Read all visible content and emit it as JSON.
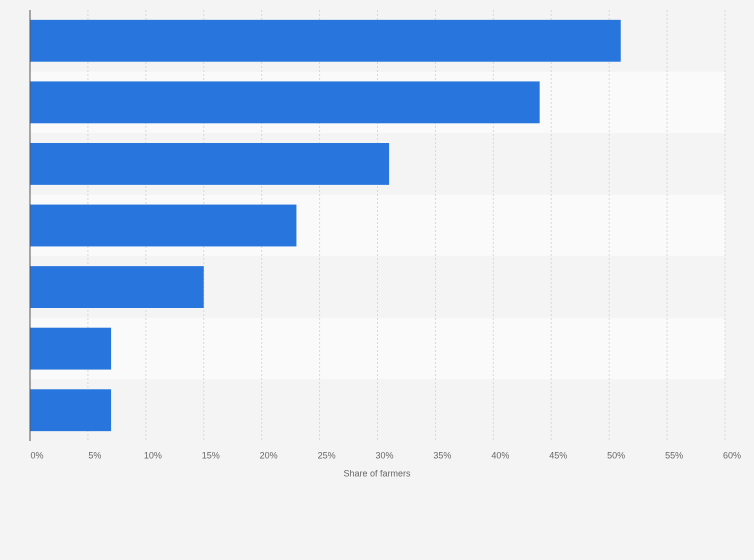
{
  "chart_data": {
    "type": "bar",
    "orientation": "horizontal",
    "categories": [
      null,
      null,
      null,
      null,
      null,
      null,
      null
    ],
    "values": [
      51,
      44,
      31,
      23,
      15,
      7,
      7
    ],
    "color": "#2876dd",
    "xlabel": "Share of farmers",
    "xlim": [
      0,
      60
    ],
    "xticks": [
      {
        "value": 0,
        "label": "0%"
      },
      {
        "value": 5,
        "label": "5%"
      },
      {
        "value": 10,
        "label": "10%"
      },
      {
        "value": 15,
        "label": "15%"
      },
      {
        "value": 20,
        "label": "20%"
      },
      {
        "value": 25,
        "label": "25%"
      },
      {
        "value": 30,
        "label": "30%"
      },
      {
        "value": 35,
        "label": "35%"
      },
      {
        "value": 40,
        "label": "40%"
      },
      {
        "value": 45,
        "label": "45%"
      },
      {
        "value": 50,
        "label": "50%"
      },
      {
        "value": 55,
        "label": "55%"
      },
      {
        "value": 60,
        "label": "60%"
      }
    ],
    "grid": true
  }
}
